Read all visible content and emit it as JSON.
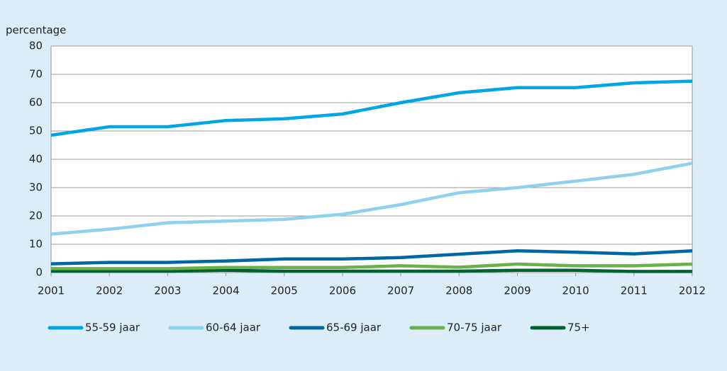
{
  "chart_data": {
    "type": "line",
    "ylabel": "percentage",
    "x": [
      2001,
      2002,
      2003,
      2004,
      2005,
      2006,
      2007,
      2008,
      2009,
      2010,
      2011,
      2012
    ],
    "xlim": [
      2001,
      2012
    ],
    "xticks": [
      2001,
      2002,
      2003,
      2004,
      2005,
      2006,
      2007,
      2008,
      2009,
      2010,
      2011,
      2012
    ],
    "ylim": [
      0,
      80
    ],
    "yticks": [
      0,
      10,
      20,
      30,
      40,
      50,
      60,
      70,
      80
    ],
    "grid": true,
    "series": [
      {
        "name": "55-59 jaar",
        "color": "#00a5e3",
        "values": [
          48.5,
          51.5,
          51.5,
          53.7,
          54.3,
          56,
          60,
          63.5,
          65.3,
          65.3,
          67,
          67.6
        ]
      },
      {
        "name": "60-64 jaar",
        "color": "#8fd0ef",
        "values": [
          13.6,
          15.3,
          17.6,
          18.2,
          18.8,
          20.6,
          24,
          28.2,
          30,
          32.3,
          34.7,
          38.6
        ]
      },
      {
        "name": "65-69 jaar",
        "color": "#0067a5",
        "values": [
          3.1,
          3.6,
          3.6,
          4.1,
          4.8,
          4.8,
          5.3,
          6.5,
          7.7,
          7.2,
          6.6,
          7.7
        ]
      },
      {
        "name": "70-75 jaar",
        "color": "#6ab04c",
        "values": [
          1.4,
          1.4,
          1.4,
          1.8,
          1.8,
          1.8,
          2.4,
          1.9,
          3,
          2.4,
          2.4,
          3
        ]
      },
      {
        "name": "75+",
        "color": "#006230",
        "values": [
          0.5,
          0.5,
          0.5,
          0.8,
          0.5,
          0.5,
          0.5,
          0.5,
          0.8,
          0.8,
          0.4,
          0.4
        ]
      }
    ]
  }
}
